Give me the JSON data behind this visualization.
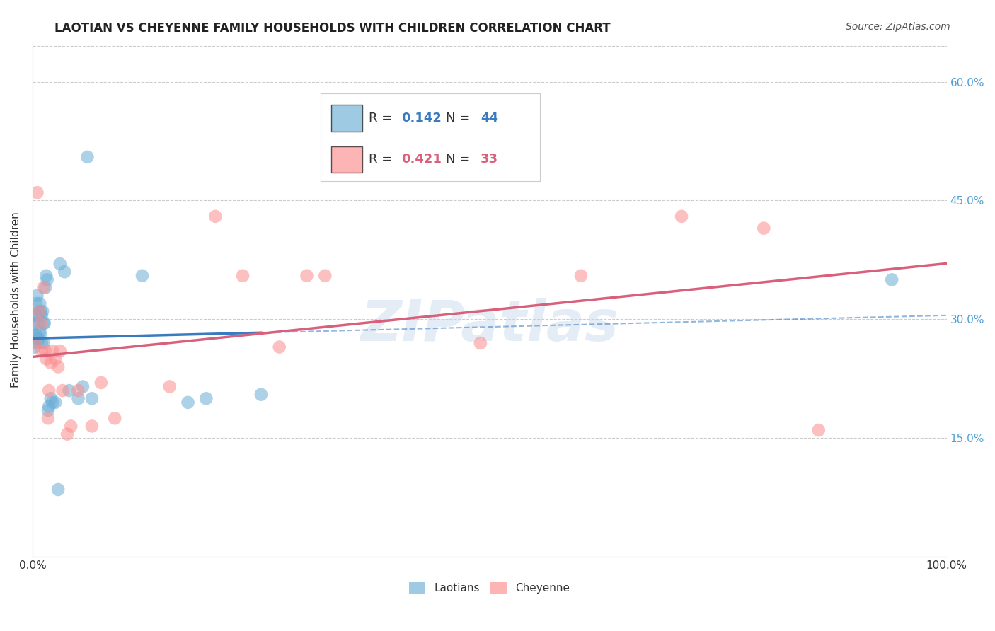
{
  "title": "LAOTIAN VS CHEYENNE FAMILY HOUSEHOLDS WITH CHILDREN CORRELATION CHART",
  "source": "Source: ZipAtlas.com",
  "ylabel": "Family Households with Children",
  "xlim": [
    0,
    1.0
  ],
  "ylim": [
    0,
    0.65
  ],
  "y_ticks": [
    0.15,
    0.3,
    0.45,
    0.6
  ],
  "laotian_color": "#6baed6",
  "cheyenne_color": "#fc8d8d",
  "laotian_R": 0.142,
  "laotian_N": 44,
  "cheyenne_R": 0.421,
  "cheyenne_N": 33,
  "laotian_line_color": "#3a7abf",
  "cheyenne_line_color": "#d95f7a",
  "laotian_x": [
    0.001,
    0.002,
    0.002,
    0.003,
    0.003,
    0.004,
    0.004,
    0.005,
    0.005,
    0.006,
    0.006,
    0.007,
    0.007,
    0.008,
    0.008,
    0.009,
    0.009,
    0.01,
    0.01,
    0.011,
    0.012,
    0.012,
    0.013,
    0.014,
    0.015,
    0.016,
    0.017,
    0.018,
    0.02,
    0.022,
    0.025,
    0.028,
    0.03,
    0.035,
    0.04,
    0.05,
    0.055,
    0.06,
    0.065,
    0.12,
    0.17,
    0.19,
    0.25,
    0.94
  ],
  "laotian_y": [
    0.28,
    0.295,
    0.265,
    0.305,
    0.27,
    0.32,
    0.28,
    0.33,
    0.305,
    0.295,
    0.275,
    0.31,
    0.275,
    0.32,
    0.285,
    0.31,
    0.28,
    0.305,
    0.27,
    0.31,
    0.295,
    0.27,
    0.295,
    0.34,
    0.355,
    0.35,
    0.185,
    0.19,
    0.2,
    0.195,
    0.195,
    0.085,
    0.37,
    0.36,
    0.21,
    0.2,
    0.215,
    0.505,
    0.2,
    0.355,
    0.195,
    0.2,
    0.205,
    0.35
  ],
  "cheyenne_x": [
    0.003,
    0.005,
    0.007,
    0.009,
    0.01,
    0.012,
    0.014,
    0.015,
    0.017,
    0.018,
    0.02,
    0.022,
    0.025,
    0.028,
    0.03,
    0.033,
    0.038,
    0.042,
    0.05,
    0.065,
    0.075,
    0.09,
    0.15,
    0.2,
    0.23,
    0.27,
    0.3,
    0.32,
    0.49,
    0.6,
    0.71,
    0.8,
    0.86
  ],
  "cheyenne_y": [
    0.27,
    0.46,
    0.31,
    0.295,
    0.26,
    0.34,
    0.26,
    0.25,
    0.175,
    0.21,
    0.245,
    0.26,
    0.25,
    0.24,
    0.26,
    0.21,
    0.155,
    0.165,
    0.21,
    0.165,
    0.22,
    0.175,
    0.215,
    0.43,
    0.355,
    0.265,
    0.355,
    0.355,
    0.27,
    0.355,
    0.43,
    0.415,
    0.16
  ],
  "watermark": "ZIPatlas",
  "background_color": "#ffffff",
  "grid_color": "#cccccc"
}
